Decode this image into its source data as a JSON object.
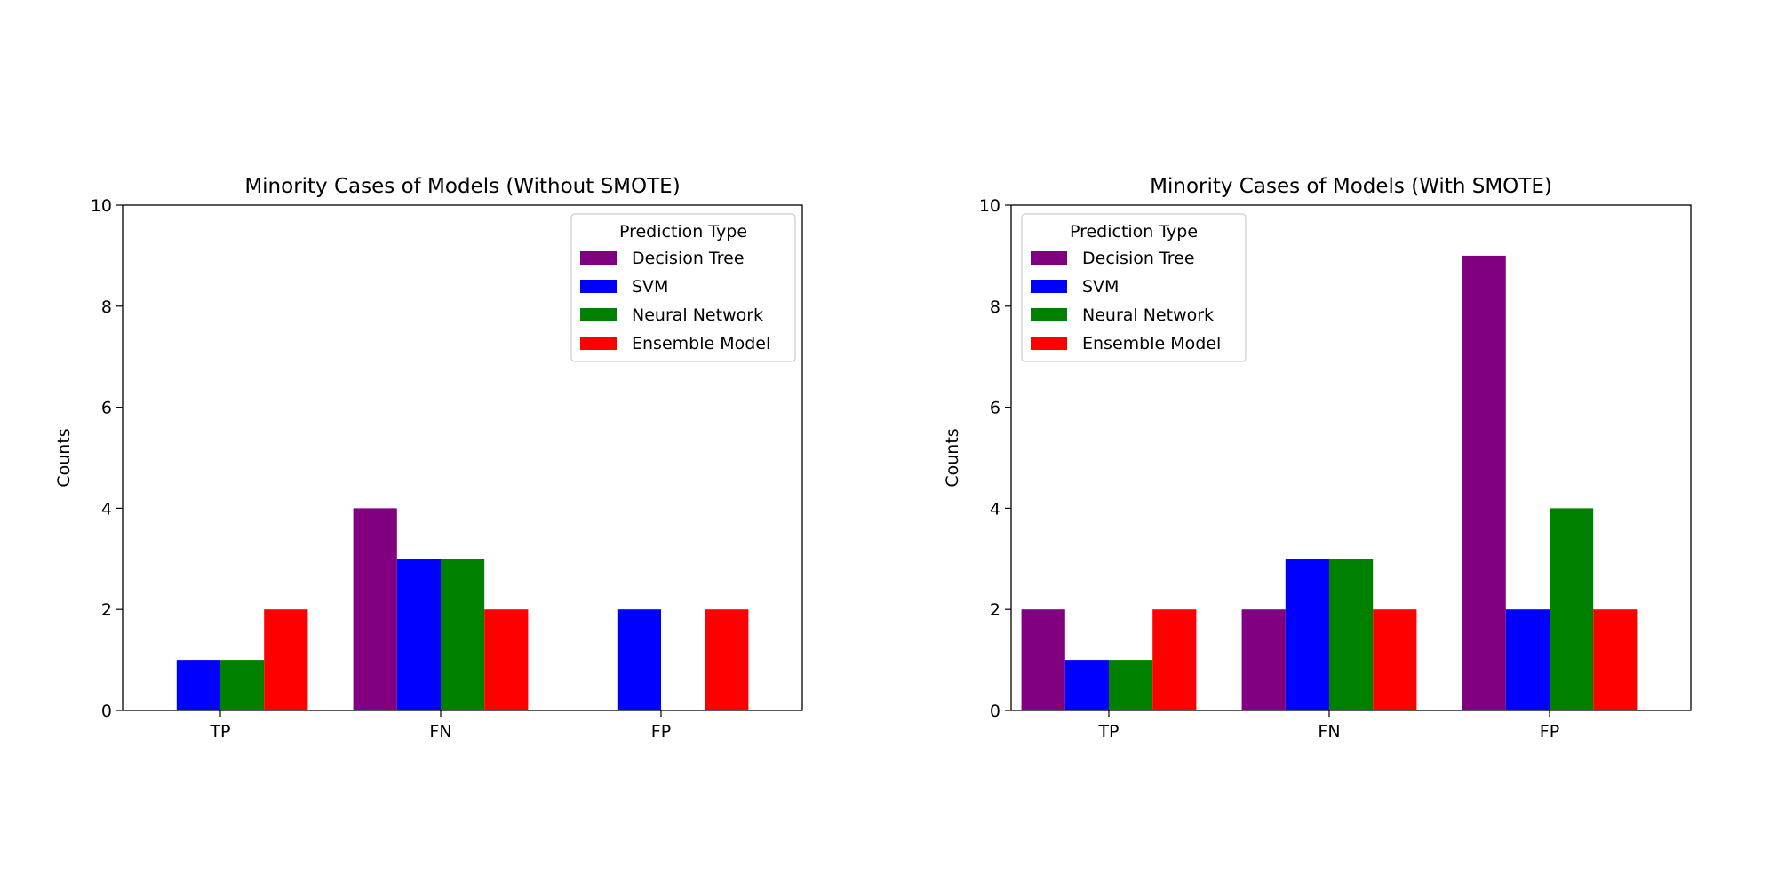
{
  "chart_data": [
    {
      "type": "bar",
      "title": "Minority Cases of Models (Without SMOTE)",
      "xlabel": "",
      "ylabel": "Counts",
      "categories": [
        "TP",
        "FN",
        "FP"
      ],
      "ylim": [
        0,
        10
      ],
      "yticks": [
        0,
        2,
        4,
        6,
        8,
        10
      ],
      "legend": {
        "title": "Prediction Type",
        "placement": "top-right"
      },
      "series": [
        {
          "name": "Decision Tree",
          "color": "#800080",
          "values": [
            0,
            4,
            0
          ]
        },
        {
          "name": "SVM",
          "color": "#0000ff",
          "values": [
            1,
            3,
            2
          ]
        },
        {
          "name": "Neural Network",
          "color": "#008000",
          "values": [
            1,
            3,
            0
          ]
        },
        {
          "name": "Ensemble Model",
          "color": "#ff0000",
          "values": [
            2,
            2,
            2
          ]
        }
      ]
    },
    {
      "type": "bar",
      "title": "Minority Cases of Models (With SMOTE)",
      "xlabel": "",
      "ylabel": "Counts",
      "categories": [
        "TP",
        "FN",
        "FP"
      ],
      "ylim": [
        0,
        10
      ],
      "yticks": [
        0,
        2,
        4,
        6,
        8,
        10
      ],
      "legend": {
        "title": "Prediction Type",
        "placement": "top-left"
      },
      "series": [
        {
          "name": "Decision Tree",
          "color": "#800080",
          "values": [
            2,
            2,
            9
          ]
        },
        {
          "name": "SVM",
          "color": "#0000ff",
          "values": [
            1,
            3,
            2
          ]
        },
        {
          "name": "Neural Network",
          "color": "#008000",
          "values": [
            1,
            3,
            4
          ]
        },
        {
          "name": "Ensemble Model",
          "color": "#ff0000",
          "values": [
            2,
            2,
            2
          ]
        }
      ]
    }
  ]
}
